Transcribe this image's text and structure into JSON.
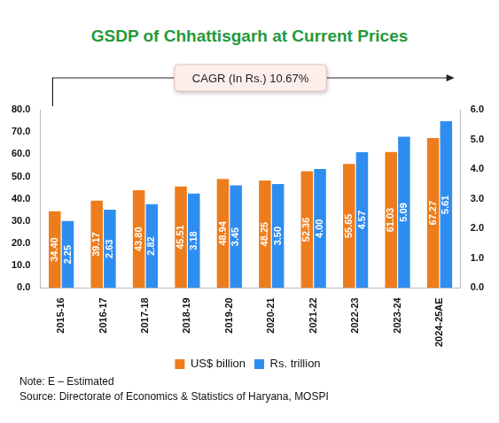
{
  "chart_data": {
    "type": "bar",
    "title": "GSDP of Chhattisgarh at Current Prices",
    "annotation": "CAGR (In Rs.) 10.67%",
    "note": "Note: E – Estimated",
    "source": "Source: Directorate of Economics & Statistics of Haryana, MOSPI",
    "categories": [
      "2015-16",
      "2016-17",
      "2017-18",
      "2018-19",
      "2019-20",
      "2020-21",
      "2021-22",
      "2022-23",
      "2023-24",
      "2024-25AE"
    ],
    "series": [
      {
        "name": "US$ billion",
        "color": "#ED7D1C",
        "axis": "y",
        "values": [
          34.4,
          39.17,
          43.8,
          45.51,
          48.94,
          48.25,
          52.36,
          55.65,
          61.03,
          67.27
        ],
        "value_labels": [
          "34.40",
          "39.17",
          "43.80",
          "45.51",
          "48.94",
          "48.25",
          "52.36",
          "55.65",
          "61.03",
          "67.27"
        ]
      },
      {
        "name": "Rs. trillion",
        "color": "#2E8DF0",
        "axis": "y2",
        "values": [
          2.25,
          2.63,
          2.82,
          3.18,
          3.45,
          3.5,
          4.0,
          4.57,
          5.09,
          5.61
        ],
        "value_labels": [
          "2.25",
          "2.63",
          "2.82",
          "3.18",
          "3.45",
          "3.50",
          "4.00",
          "4.57",
          "5.09",
          "5.61"
        ]
      }
    ],
    "ylim": [
      0,
      80
    ],
    "yticks": [
      {
        "value": 0,
        "label": "0.0"
      },
      {
        "value": 10,
        "label": "10.0"
      },
      {
        "value": 20,
        "label": "20.0"
      },
      {
        "value": 30,
        "label": "30.0"
      },
      {
        "value": 40,
        "label": "40.0"
      },
      {
        "value": 50,
        "label": "50.0"
      },
      {
        "value": 60,
        "label": "60.0"
      },
      {
        "value": 70,
        "label": "70.0"
      },
      {
        "value": 80,
        "label": "80.0"
      }
    ],
    "y2lim": [
      0,
      6
    ],
    "y2ticks": [
      {
        "value": 0,
        "label": "0.0"
      },
      {
        "value": 1,
        "label": "1.0"
      },
      {
        "value": 2,
        "label": "2.0"
      },
      {
        "value": 3,
        "label": "3.0"
      },
      {
        "value": 4,
        "label": "4.0"
      },
      {
        "value": 5,
        "label": "5.0"
      },
      {
        "value": 6,
        "label": "6.0"
      }
    ],
    "grid": false,
    "legend": "bottom",
    "data_labels": true
  }
}
